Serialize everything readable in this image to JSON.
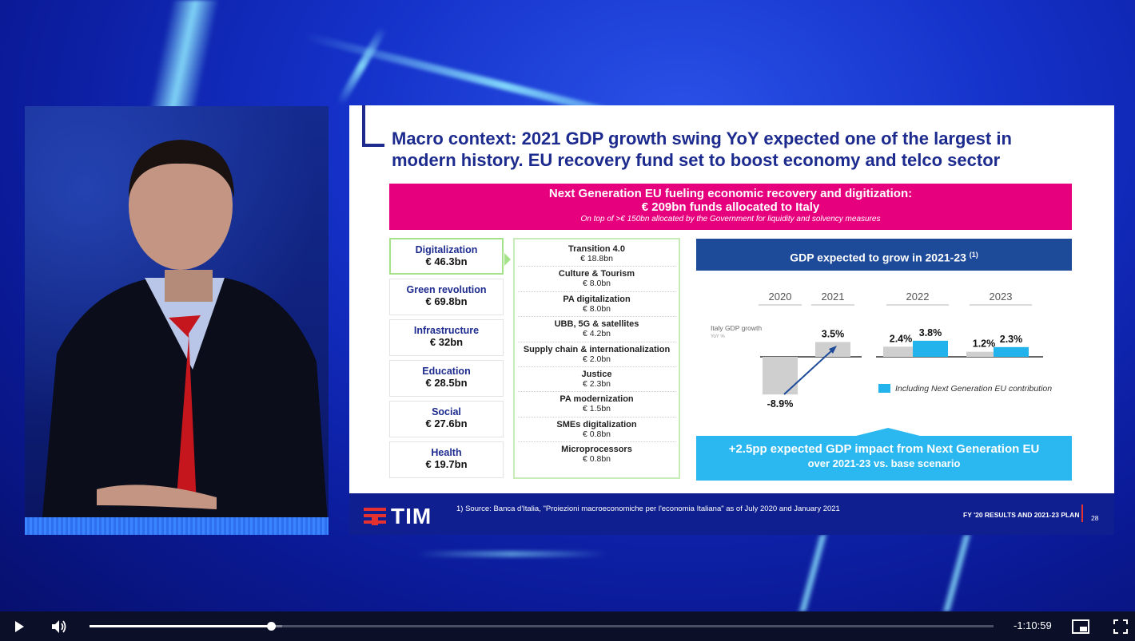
{
  "slide": {
    "title_line1": "Macro context: 2021 GDP growth swing YoY expected one of the largest in",
    "title_line2": "modern history. EU recovery fund set to boost economy and telco sector",
    "banner": {
      "line1": "Next Generation EU fueling economic recovery and digitization:",
      "line2": "€ 209bn funds allocated to Italy",
      "line3": "On top of >€ 150bn allocated by the Government for liquidity and solvency measures"
    },
    "categories": [
      {
        "name": "Digitalization",
        "value": "€ 46.3bn"
      },
      {
        "name": "Green revolution",
        "value": "€ 69.8bn"
      },
      {
        "name": "Infrastructure",
        "value": "€ 32bn"
      },
      {
        "name": "Education",
        "value": "€ 28.5bn"
      },
      {
        "name": "Social",
        "value": "€ 27.6bn"
      },
      {
        "name": "Health",
        "value": "€ 19.7bn"
      }
    ],
    "digital_items": [
      {
        "name": "Transition 4.0",
        "value": "€ 18.8bn"
      },
      {
        "name": "Culture & Tourism",
        "value": "€ 8.0bn"
      },
      {
        "name": "PA digitalization",
        "value": "€ 8.0bn"
      },
      {
        "name": "UBB, 5G & satellites",
        "value": "€ 4.2bn"
      },
      {
        "name": "Supply chain & internationalization",
        "value": "€ 2.0bn"
      },
      {
        "name": "Justice",
        "value": "€ 2.3bn"
      },
      {
        "name": "PA modernization",
        "value": "€ 1.5bn"
      },
      {
        "name": "SMEs digitalization",
        "value": "€ 0.8bn"
      },
      {
        "name": "Microprocessors",
        "value": "€ 0.8bn"
      }
    ],
    "gdp_header": "GDP expected to grow in 2021-23",
    "gdp_header_note": "(1)",
    "impact_line1": "+2.5pp expected GDP impact from Next Generation EU",
    "impact_line2": "over 2021-23 vs. base scenario",
    "footer": {
      "logo": "TIM",
      "source": "1)    Source: Banca d'Italia, \"Proiezioni macroeconomiche per l'economia Italiana\" as of July 2020 and January 2021",
      "plan": "FY '20 RESULTS AND 2021-23 PLAN",
      "page": "28"
    }
  },
  "chart_data": {
    "type": "bar",
    "categories": [
      "2020",
      "2021",
      "2022",
      "2023"
    ],
    "ylabel": "Italy GDP growth",
    "yunit": "YoY %",
    "series": [
      {
        "name": "",
        "values": [
          -8.9,
          3.5,
          2.4,
          1.2
        ],
        "labels": [
          "-8.9%",
          "3.5%",
          "2.4%",
          "1.2%"
        ]
      },
      {
        "name": "Including Next Generation EU contribution",
        "values": [
          null,
          null,
          3.8,
          2.3
        ],
        "labels": [
          "",
          "",
          "3.8%",
          "2.3%"
        ]
      }
    ],
    "legend": "Including Next Generation EU contribution",
    "legend_position": "bottom-right",
    "colors": {
      "base": "#cfcfcf",
      "ngeu": "#22b3ec",
      "arrow": "#1d4a99"
    }
  },
  "player": {
    "time_remaining": "-1:10:59",
    "progress_fraction": 0.201,
    "buffered_fraction": 0.213,
    "icons": {
      "play": "play-icon",
      "volume": "volume-icon",
      "pip": "picture-in-picture-icon",
      "fullscreen": "fullscreen-icon"
    }
  }
}
